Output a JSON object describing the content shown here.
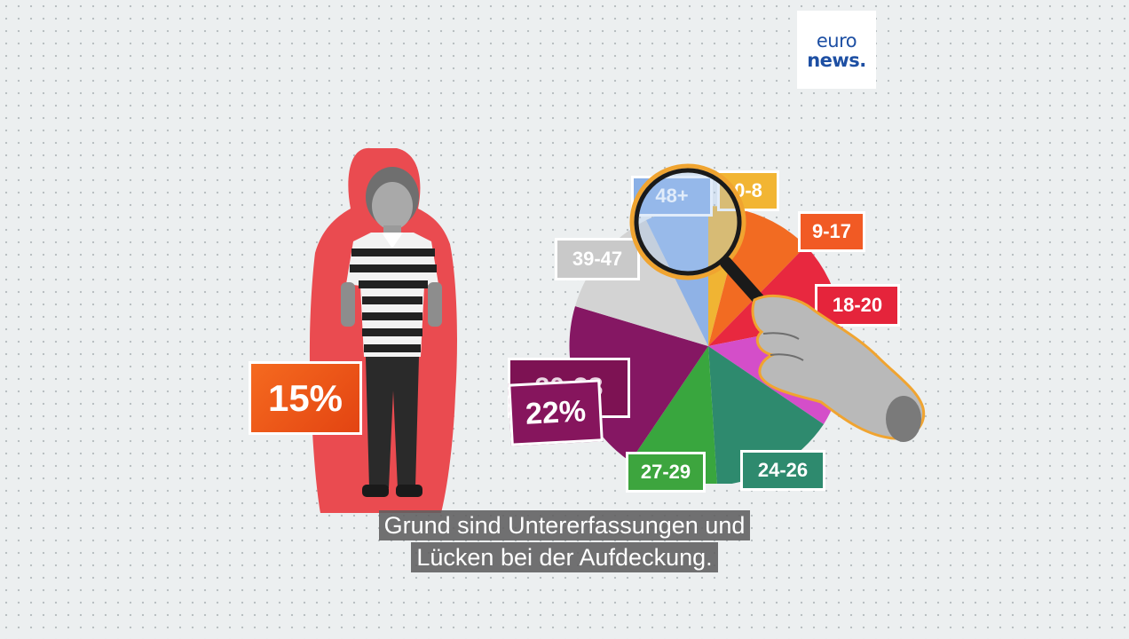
{
  "logo": {
    "line1": "euro",
    "line2": "news."
  },
  "labels": {
    "pct_child": "15%",
    "pct_pie": "22%",
    "tag_behind": "30-38"
  },
  "age_groups": [
    "48+",
    "0-8",
    "9-17",
    "18-20",
    "24-26",
    "27-29",
    "39-47"
  ],
  "subtitle": {
    "line1": "Grund sind Untererfassungen und",
    "line2": "Lücken bei der Aufdeckung."
  },
  "colors": {
    "child_backdrop": "#e94b4f",
    "pct_orange": "#f15a24",
    "pct_purple": "#86155d"
  },
  "icons": [
    "magnifier-icon",
    "hand-icon",
    "child-figure"
  ]
}
